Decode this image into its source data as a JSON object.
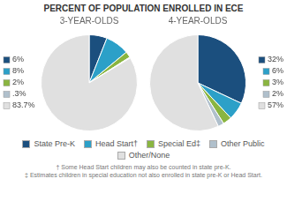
{
  "chart_data": [
    {
      "type": "pie",
      "title": "PERCENT OF POPULATION ENROLLED IN ECE",
      "subtitle": "3-YEAR-OLDS",
      "categories": [
        "State Pre-K",
        "Head Start†",
        "Special Ed‡",
        "Other Public",
        "Other/None"
      ],
      "values": [
        6,
        8,
        2,
        0.3,
        83.7
      ],
      "value_labels": [
        "6%",
        "8%",
        "2%",
        ".3%",
        "83.7%"
      ],
      "colors": [
        "#1b4f7e",
        "#2ca0c8",
        "#8ab540",
        "#b0c0cc",
        "#e0e0e0"
      ],
      "data_labels": true,
      "legend": "bottom",
      "annotations": [
        "† Some Head Start children may also be counted in state pre-K.",
        "‡ Estimates children in special education not also enrolled in state pre-K or Head Start."
      ]
    },
    {
      "type": "pie",
      "subtitle": "4-YEAR-OLDS",
      "categories": [
        "State Pre-K",
        "Head Start†",
        "Special Ed‡",
        "Other Public",
        "Other/None"
      ],
      "values": [
        32,
        6,
        3,
        2,
        57
      ],
      "value_labels": [
        "32%",
        "6%",
        "3%",
        "2%",
        "57%"
      ],
      "colors": [
        "#1b4f7e",
        "#2ca0c8",
        "#8ab540",
        "#b0c0cc",
        "#e0e0e0"
      ],
      "data_labels": true,
      "legend": "bottom"
    }
  ]
}
